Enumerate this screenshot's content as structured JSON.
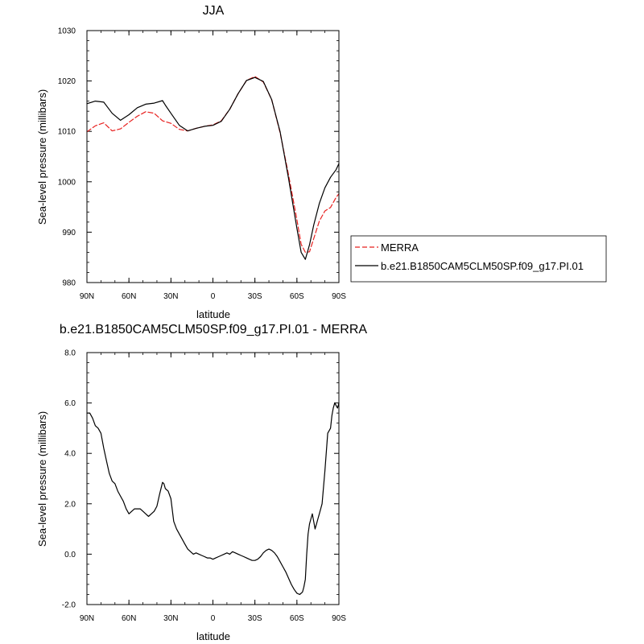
{
  "chart_data": [
    {
      "type": "line",
      "title": "JJA",
      "xlabel": "latitude",
      "ylabel": "Sea-level pressure (millibars)",
      "xlim": [
        90,
        -90
      ],
      "ylim": [
        980,
        1030
      ],
      "x_ticks": [
        {
          "value": 90,
          "label": "90N"
        },
        {
          "value": 60,
          "label": "60N"
        },
        {
          "value": 30,
          "label": "30N"
        },
        {
          "value": 0,
          "label": "0"
        },
        {
          "value": -30,
          "label": "30S"
        },
        {
          "value": -60,
          "label": "60S"
        },
        {
          "value": -90,
          "label": "90S"
        }
      ],
      "y_ticks": [
        {
          "value": 980,
          "label": "980"
        },
        {
          "value": 990,
          "label": "990"
        },
        {
          "value": 1000,
          "label": "1000"
        },
        {
          "value": 1010,
          "label": "1010"
        },
        {
          "value": 1020,
          "label": "1020"
        },
        {
          "value": 1030,
          "label": "1030"
        }
      ],
      "legend": {
        "placement": "right"
      },
      "series": [
        {
          "name": "MERRA",
          "color": "#e8201f",
          "dash": "dashed",
          "x": [
            90,
            84,
            78,
            72,
            66,
            60,
            54,
            48,
            42,
            36,
            30,
            24,
            18,
            12,
            6,
            0,
            -6,
            -12,
            -18,
            -24,
            -30,
            -36,
            -42,
            -48,
            -54,
            -60,
            -63,
            -66,
            -69,
            -72,
            -76,
            -80,
            -84,
            -88,
            -90
          ],
          "y": [
            1009.9,
            1011.1,
            1011.7,
            1010.1,
            1010.5,
            1011.8,
            1013.0,
            1013.9,
            1013.6,
            1012.1,
            1011.6,
            1010.4,
            1010.1,
            1010.6,
            1011.0,
            1011.3,
            1012.1,
            1014.4,
            1017.5,
            1020.1,
            1020.9,
            1019.8,
            1016.3,
            1009.7,
            1001.4,
            992.5,
            987.6,
            986.0,
            986.1,
            988.7,
            992.2,
            994.2,
            994.9,
            996.9,
            997.6
          ]
        },
        {
          "name": "b.e21.B1850CAM5CLM50SP.f09_g17.PI.01",
          "color": "#000000",
          "dash": "solid",
          "x": [
            90,
            84,
            78,
            72,
            66,
            60,
            54,
            48,
            42,
            36,
            34,
            30,
            24,
            18,
            12,
            6,
            0,
            -6,
            -12,
            -18,
            -24,
            -30,
            -36,
            -42,
            -48,
            -54,
            -60,
            -63,
            -66,
            -69,
            -72,
            -76,
            -80,
            -84,
            -88,
            -90
          ],
          "y": [
            1015.5,
            1016.0,
            1015.8,
            1013.6,
            1012.2,
            1013.3,
            1014.7,
            1015.4,
            1015.6,
            1016.1,
            1015.2,
            1013.6,
            1011.2,
            1010.1,
            1010.6,
            1011.0,
            1011.2,
            1012.0,
            1014.4,
            1017.5,
            1020.1,
            1020.7,
            1019.9,
            1016.3,
            1009.9,
            1000.7,
            990.8,
            986.0,
            984.6,
            987.5,
            991.4,
            995.7,
            998.8,
            1000.9,
            1002.4,
            1003.6
          ]
        }
      ]
    },
    {
      "type": "line",
      "title": "b.e21.B1850CAM5CLM50SP.f09_g17.PI.01 - MERRA",
      "xlabel": "latitude",
      "ylabel": "Sea-level pressure (millibars)",
      "xlim": [
        90,
        -90
      ],
      "ylim": [
        -2.0,
        8.0
      ],
      "x_ticks": [
        {
          "value": 90,
          "label": "90N"
        },
        {
          "value": 60,
          "label": "60N"
        },
        {
          "value": 30,
          "label": "30N"
        },
        {
          "value": 0,
          "label": "0"
        },
        {
          "value": -30,
          "label": "30S"
        },
        {
          "value": -60,
          "label": "60S"
        },
        {
          "value": -90,
          "label": "90S"
        }
      ],
      "y_ticks": [
        {
          "value": -2.0,
          "label": "-2.0"
        },
        {
          "value": 0.0,
          "label": "0.0"
        },
        {
          "value": 2.0,
          "label": "2.0"
        },
        {
          "value": 4.0,
          "label": "4.0"
        },
        {
          "value": 6.0,
          "label": "6.0"
        },
        {
          "value": 8.0,
          "label": "8.0"
        }
      ],
      "series": [
        {
          "color": "#000000",
          "dash": "solid",
          "x": [
            90,
            88,
            86,
            84,
            82,
            80,
            78,
            76,
            74,
            72,
            70,
            68,
            66,
            64,
            62,
            60,
            58,
            56,
            54,
            52,
            50,
            48,
            46,
            44,
            42,
            40,
            38,
            36,
            35,
            34,
            32,
            30,
            28,
            26,
            24,
            22,
            20,
            18,
            16,
            14,
            12,
            10,
            8,
            6,
            4,
            2,
            0,
            -2,
            -4,
            -6,
            -8,
            -10,
            -12,
            -14,
            -16,
            -18,
            -20,
            -22,
            -24,
            -26,
            -28,
            -30,
            -32,
            -34,
            -36,
            -38,
            -40,
            -42,
            -44,
            -46,
            -48,
            -50,
            -52,
            -54,
            -56,
            -58,
            -60,
            -62,
            -64,
            -65,
            -66,
            -67,
            -68,
            -69,
            -70,
            -71,
            -72,
            -73,
            -74,
            -75,
            -76,
            -78,
            -80,
            -82,
            -84,
            -85,
            -86,
            -87,
            -88,
            -89,
            -90
          ],
          "y": [
            5.6,
            5.6,
            5.4,
            5.1,
            5.0,
            4.8,
            4.2,
            3.7,
            3.2,
            2.9,
            2.8,
            2.5,
            2.3,
            2.1,
            1.8,
            1.6,
            1.7,
            1.8,
            1.8,
            1.8,
            1.7,
            1.6,
            1.5,
            1.6,
            1.7,
            1.9,
            2.4,
            2.85,
            2.8,
            2.6,
            2.5,
            2.2,
            1.3,
            1.0,
            0.8,
            0.6,
            0.4,
            0.2,
            0.1,
            0.0,
            0.05,
            0.0,
            -0.05,
            -0.1,
            -0.15,
            -0.15,
            -0.2,
            -0.15,
            -0.1,
            -0.05,
            0.0,
            0.05,
            0.0,
            0.1,
            0.05,
            0.0,
            -0.05,
            -0.1,
            -0.15,
            -0.2,
            -0.25,
            -0.25,
            -0.2,
            -0.1,
            0.05,
            0.15,
            0.2,
            0.15,
            0.05,
            -0.1,
            -0.3,
            -0.5,
            -0.7,
            -0.95,
            -1.2,
            -1.4,
            -1.55,
            -1.6,
            -1.5,
            -1.3,
            -1.0,
            0.0,
            0.8,
            1.2,
            1.4,
            1.6,
            1.3,
            1.0,
            1.2,
            1.4,
            1.6,
            2.0,
            3.3,
            4.8,
            5.0,
            5.5,
            5.8,
            6.0,
            5.9,
            5.8,
            6.0
          ]
        }
      ]
    }
  ]
}
